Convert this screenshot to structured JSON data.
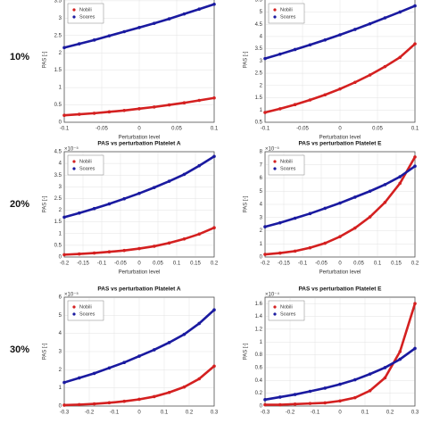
{
  "row_labels": [
    "10%",
    "20%",
    "30%"
  ],
  "chart_data": [
    {
      "type": "line",
      "ylabel": "PAS [-]",
      "xlabel": "Perturbation level",
      "x": [
        -0.1,
        -0.08,
        -0.06,
        -0.04,
        -0.02,
        0,
        0.02,
        0.04,
        0.06,
        0.08,
        0.1
      ],
      "xlim": [
        -0.1,
        0.1
      ],
      "xticks": [
        -0.1,
        -0.05,
        0,
        0.05,
        0.1
      ],
      "ylim": [
        0,
        3.6
      ],
      "yticks": [
        0,
        0.5,
        1,
        1.5,
        2,
        2.5,
        3,
        3.5
      ],
      "grid": true,
      "legend": "upper left",
      "series": [
        {
          "name": "Nobili",
          "color": "#d42020",
          "values": [
            0.2,
            0.23,
            0.26,
            0.3,
            0.34,
            0.39,
            0.44,
            0.5,
            0.56,
            0.63,
            0.7
          ]
        },
        {
          "name": "Soares",
          "color": "#1a1aa0",
          "values": [
            2.15,
            2.26,
            2.37,
            2.49,
            2.61,
            2.73,
            2.85,
            2.98,
            3.12,
            3.26,
            3.4
          ]
        }
      ]
    },
    {
      "type": "line",
      "ylabel": "PAS [-]",
      "xlabel": "Perturbation level",
      "x": [
        -0.1,
        -0.08,
        -0.06,
        -0.04,
        -0.02,
        0,
        0.02,
        0.04,
        0.06,
        0.08,
        0.1
      ],
      "xlim": [
        -0.1,
        0.1
      ],
      "xticks": [
        -0.1,
        -0.05,
        0,
        0.05,
        0.1
      ],
      "ylim": [
        0.5,
        5.6
      ],
      "yticks": [
        0.5,
        1,
        1.5,
        2,
        2.5,
        3,
        3.5,
        4,
        4.5,
        5,
        5.5
      ],
      "grid": true,
      "legend": "upper left",
      "series": [
        {
          "name": "Nobili",
          "color": "#d42020",
          "values": [
            0.9,
            1.05,
            1.22,
            1.41,
            1.62,
            1.86,
            2.13,
            2.43,
            2.77,
            3.15,
            3.7
          ]
        },
        {
          "name": "Soares",
          "color": "#1a1aa0",
          "values": [
            3.1,
            3.28,
            3.47,
            3.66,
            3.86,
            4.07,
            4.29,
            4.52,
            4.76,
            5.0,
            5.25
          ]
        }
      ]
    },
    {
      "type": "line",
      "title": "PAS vs perturbation Platelet A",
      "ylabel": "PAS [-]",
      "xlabel": "Perturbation level",
      "exponent": "×10⁻⁵",
      "x": [
        -0.2,
        -0.16,
        -0.12,
        -0.08,
        -0.04,
        0,
        0.04,
        0.08,
        0.12,
        0.16,
        0.2
      ],
      "xlim": [
        -0.2,
        0.2
      ],
      "xticks": [
        -0.2,
        -0.15,
        -0.1,
        -0.05,
        0,
        0.05,
        0.1,
        0.15,
        0.2
      ],
      "ylim": [
        0,
        4.5
      ],
      "yticks": [
        0,
        0.5,
        1,
        1.5,
        2,
        2.5,
        3,
        3.5,
        4,
        4.5
      ],
      "grid": true,
      "legend": "upper left",
      "series": [
        {
          "name": "Nobili",
          "color": "#d42020",
          "values": [
            0.1,
            0.13,
            0.17,
            0.22,
            0.28,
            0.36,
            0.46,
            0.6,
            0.77,
            0.98,
            1.25
          ]
        },
        {
          "name": "Soares",
          "color": "#1a1aa0",
          "values": [
            1.7,
            1.88,
            2.07,
            2.27,
            2.49,
            2.72,
            2.97,
            3.24,
            3.53,
            3.9,
            4.3
          ]
        }
      ]
    },
    {
      "type": "line",
      "title": "PAS vs perturbation Platelet E",
      "ylabel": "PAS [-]",
      "xlabel": "Perturbation level",
      "exponent": "×10⁻⁵",
      "x": [
        -0.2,
        -0.16,
        -0.12,
        -0.08,
        -0.04,
        0,
        0.04,
        0.08,
        0.12,
        0.16,
        0.2
      ],
      "xlim": [
        -0.2,
        0.2
      ],
      "xticks": [
        -0.2,
        -0.15,
        -0.1,
        -0.05,
        0,
        0.05,
        0.1,
        0.15,
        0.2
      ],
      "ylim": [
        0,
        8
      ],
      "yticks": [
        0,
        1,
        2,
        3,
        4,
        5,
        6,
        7,
        8
      ],
      "grid": true,
      "legend": "upper left",
      "series": [
        {
          "name": "Nobili",
          "color": "#d42020",
          "values": [
            0.2,
            0.3,
            0.45,
            0.7,
            1.05,
            1.55,
            2.2,
            3.05,
            4.15,
            5.6,
            7.6
          ]
        },
        {
          "name": "Soares",
          "color": "#1a1aa0",
          "values": [
            2.3,
            2.6,
            2.95,
            3.3,
            3.7,
            4.1,
            4.55,
            5.0,
            5.5,
            6.1,
            6.9
          ]
        }
      ]
    },
    {
      "type": "line",
      "title": "PAS vs perturbation Platelet A",
      "ylabel": "PAS [-]",
      "exponent": "×10⁻⁵",
      "x": [
        -0.3,
        -0.24,
        -0.18,
        -0.12,
        -0.06,
        0,
        0.06,
        0.12,
        0.18,
        0.24,
        0.3
      ],
      "xlim": [
        -0.3,
        0.3
      ],
      "xticks": [
        -0.3,
        -0.2,
        -0.1,
        0,
        0.1,
        0.2,
        0.3
      ],
      "ylim": [
        0,
        6
      ],
      "yticks": [
        0,
        1,
        2,
        3,
        4,
        5,
        6
      ],
      "grid": true,
      "legend": "upper left",
      "series": [
        {
          "name": "Nobili",
          "color": "#d42020",
          "values": [
            0.05,
            0.08,
            0.12,
            0.18,
            0.26,
            0.37,
            0.52,
            0.75,
            1.05,
            1.5,
            2.2
          ]
        },
        {
          "name": "Soares",
          "color": "#1a1aa0",
          "values": [
            1.3,
            1.55,
            1.8,
            2.1,
            2.4,
            2.75,
            3.1,
            3.5,
            3.95,
            4.55,
            5.3
          ]
        }
      ]
    },
    {
      "type": "line",
      "title": "PAS vs perturbation Platelet E",
      "ylabel": "PAS [-]",
      "exponent": "×10⁻⁴",
      "x": [
        -0.3,
        -0.24,
        -0.18,
        -0.12,
        -0.06,
        0,
        0.06,
        0.12,
        0.18,
        0.24,
        0.3
      ],
      "xlim": [
        -0.3,
        0.3
      ],
      "xticks": [
        -0.3,
        -0.2,
        -0.1,
        0,
        0.1,
        0.2,
        0.3
      ],
      "ylim": [
        0,
        1.7
      ],
      "yticks": [
        0,
        0.2,
        0.4,
        0.6,
        0.8,
        1,
        1.2,
        1.4,
        1.6
      ],
      "grid": true,
      "legend": "upper left",
      "series": [
        {
          "name": "Nobili",
          "color": "#d42020",
          "values": [
            0.02,
            0.02,
            0.03,
            0.04,
            0.05,
            0.08,
            0.13,
            0.24,
            0.44,
            0.85,
            1.6
          ]
        },
        {
          "name": "Soares",
          "color": "#1a1aa0",
          "values": [
            0.1,
            0.14,
            0.18,
            0.23,
            0.28,
            0.34,
            0.41,
            0.5,
            0.6,
            0.73,
            0.9
          ]
        }
      ]
    }
  ]
}
